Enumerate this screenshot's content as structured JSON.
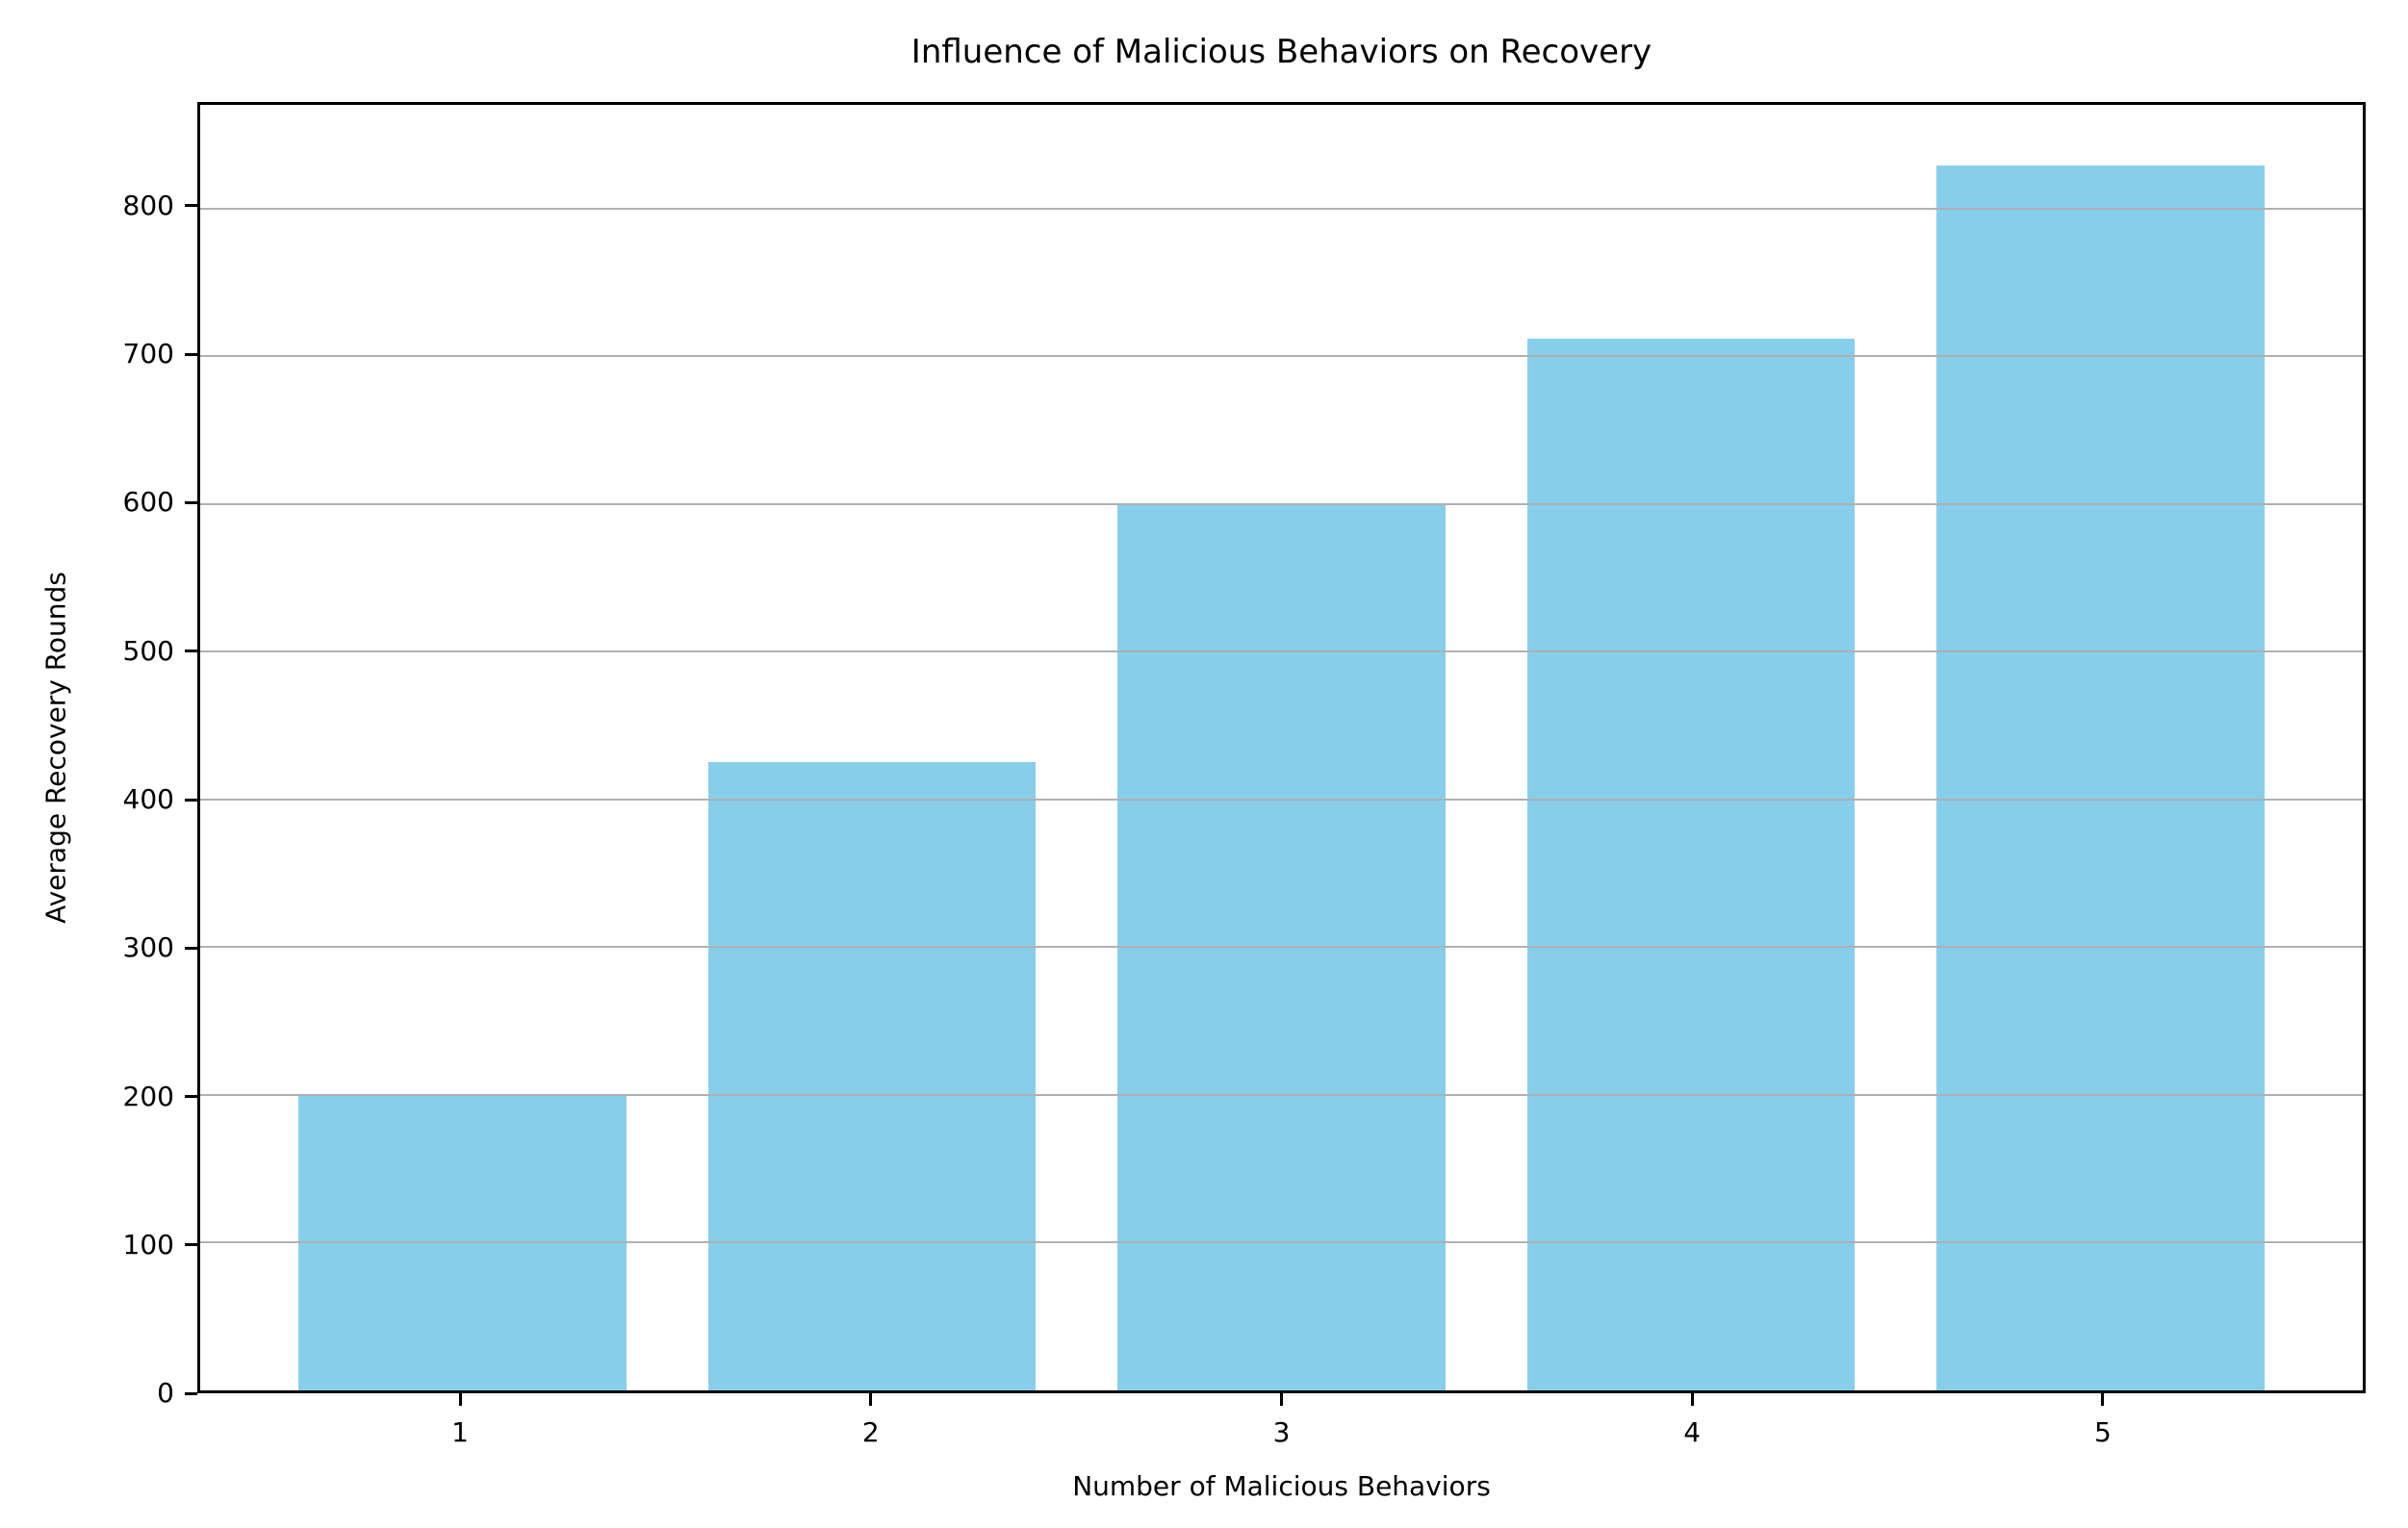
{
  "chart_data": {
    "type": "bar",
    "title": "Influence of Malicious Behaviors on Recovery",
    "xlabel": "Number of Malicious Behaviors",
    "ylabel": "Average Recovery Rounds",
    "categories": [
      "1",
      "2",
      "3",
      "4",
      "5"
    ],
    "x": [
      1,
      2,
      3,
      4,
      5
    ],
    "values": [
      200,
      425,
      600,
      712,
      829
    ],
    "yticks": [
      0,
      100,
      200,
      300,
      400,
      500,
      600,
      700,
      800
    ],
    "ylim": [
      0,
      870
    ],
    "xlim": [
      0.36,
      5.64
    ],
    "bar_width": 0.8,
    "bar_color": "#87CEEB",
    "grid": "y-only",
    "grid_color": "#b0b0b0",
    "grid_above_bars": true,
    "spine_color": "#000000",
    "background_color": "#ffffff",
    "legend": "none"
  }
}
